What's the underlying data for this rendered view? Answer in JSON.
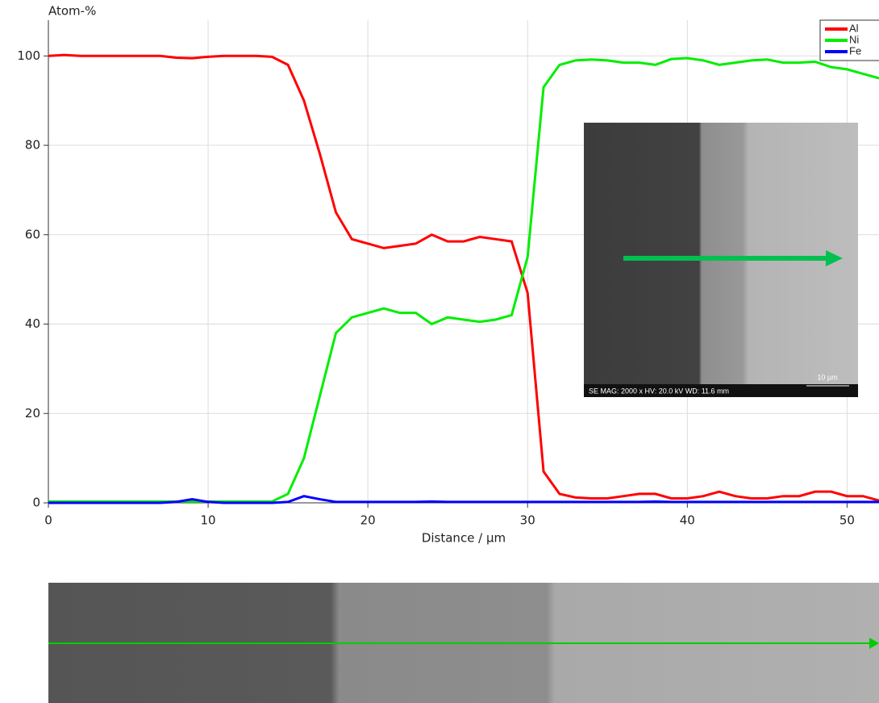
{
  "chart_data": {
    "type": "line",
    "y_axis_title": "Atom-%",
    "x_axis_title": "Distance / µm",
    "x": [
      0,
      1,
      2,
      3,
      4,
      5,
      6,
      7,
      8,
      9,
      10,
      11,
      12,
      13,
      14,
      15,
      16,
      17,
      18,
      19,
      20,
      21,
      22,
      23,
      24,
      25,
      26,
      27,
      28,
      29,
      30,
      31,
      32,
      33,
      34,
      35,
      36,
      37,
      38,
      39,
      40,
      41,
      42,
      43,
      44,
      45,
      46,
      47,
      48,
      49,
      50,
      51,
      52
    ],
    "series": [
      {
        "name": "Al",
        "color": "#ff0000",
        "values": [
          100,
          100.2,
          100,
          100,
          100,
          100,
          100,
          100,
          99.6,
          99.5,
          99.8,
          100,
          100,
          100,
          99.8,
          98,
          90,
          78,
          65,
          59,
          58,
          57,
          57.5,
          58,
          60,
          58.5,
          58.5,
          59.5,
          59,
          58.5,
          47,
          7,
          2,
          1.2,
          1,
          1,
          1.5,
          2,
          2,
          1,
          1,
          1.5,
          2.5,
          1.5,
          1,
          1,
          1.5,
          1.5,
          2.5,
          2.5,
          1.5,
          1.5,
          0.5
        ]
      },
      {
        "name": "Ni",
        "color": "#00ee00",
        "values": [
          0.3,
          0.3,
          0.3,
          0.3,
          0.3,
          0.3,
          0.3,
          0.3,
          0.3,
          0.3,
          0.3,
          0.3,
          0.3,
          0.3,
          0.3,
          2,
          10,
          24,
          38,
          41.5,
          42.5,
          43.5,
          42.5,
          42.5,
          40,
          41.5,
          41,
          40.5,
          41,
          42,
          55,
          93,
          98,
          99,
          99.2,
          99,
          98.5,
          98.5,
          98,
          99.3,
          99.5,
          99,
          98,
          98.5,
          99,
          99.2,
          98.5,
          98.5,
          98.7,
          97.5,
          97,
          96,
          95
        ]
      },
      {
        "name": "Fe",
        "color": "#0000ff",
        "values": [
          0,
          0,
          0,
          0,
          0,
          0,
          0,
          0,
          0.2,
          0.8,
          0.2,
          0,
          0,
          0,
          0,
          0.2,
          1.5,
          0.8,
          0.2,
          0.2,
          0.2,
          0.2,
          0.2,
          0.2,
          0.3,
          0.2,
          0.2,
          0.2,
          0.2,
          0.2,
          0.2,
          0.2,
          0.2,
          0.2,
          0.2,
          0.2,
          0.2,
          0.2,
          0.3,
          0.2,
          0.2,
          0.2,
          0.2,
          0.2,
          0.2,
          0.2,
          0.2,
          0.2,
          0.2,
          0.2,
          0.2,
          0.2,
          0.2
        ]
      }
    ],
    "xlim": [
      0,
      52
    ],
    "ylim": [
      0,
      108
    ],
    "xticks": [
      0,
      10,
      20,
      30,
      40,
      50
    ],
    "yticks": [
      0,
      20,
      40,
      60,
      80,
      100
    ],
    "grid": true,
    "legend": "top-right",
    "inset_caption": "SE  MAG: 2000 x  HV: 20.0 kV  WD: 11.6 mm",
    "inset_scale": "10 µm"
  }
}
